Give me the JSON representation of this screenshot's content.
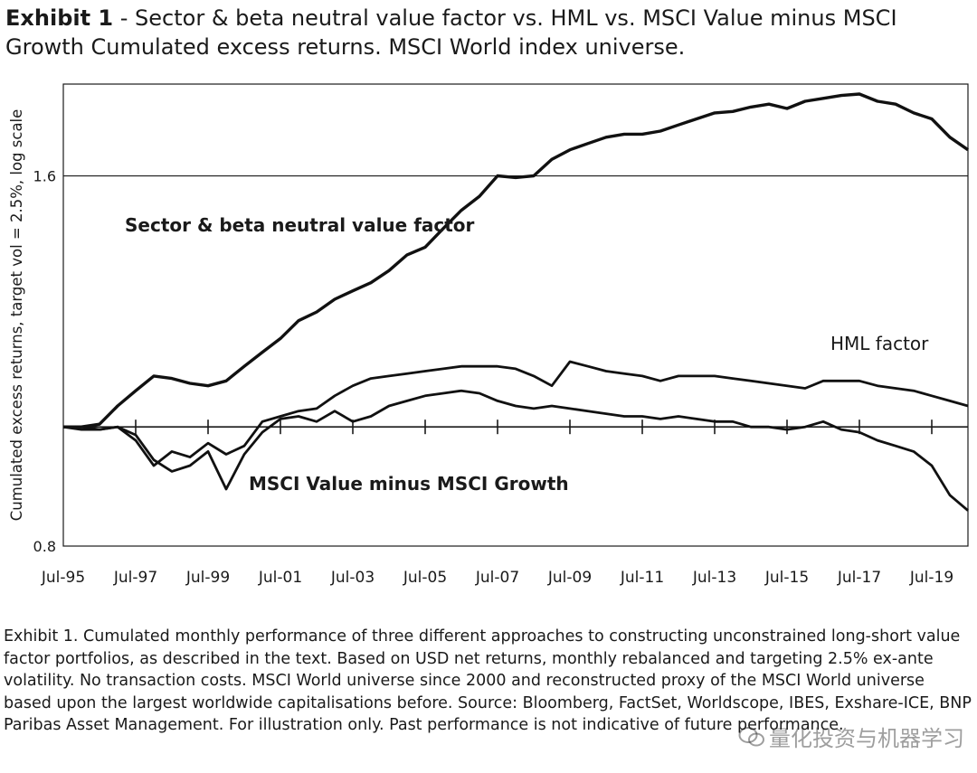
{
  "title": {
    "label": "Exhibit 1",
    "text": " - Sector & beta neutral value factor vs. HML vs. MSCI Value minus MSCI Growth Cumulated excess returns. MSCI World index universe."
  },
  "caption": "Exhibit 1. Cumulated monthly performance of three different approaches to constructing unconstrained long-short value factor portfolios, as described in the text. Based on USD net returns, monthly rebalanced and targeting 2.5% ex-ante volatility. No transaction costs. MSCI World universe since 2000 and reconstructed proxy of the MSCI World universe based upon the largest worldwide capitalisations before. Source: Bloomberg, FactSet, Worldscope, IBES, Exshare-ICE, BNP Paribas Asset Management. For illustration only. Past performance is not indicative of future performance.",
  "watermark": "量化投资与机器学习",
  "chart_data": {
    "type": "line",
    "title": "",
    "xlabel": "",
    "ylabel": "Cumulated excess returns, target vol = 2.5%, log scale",
    "y_scale": "log",
    "ylim": [
      0.8,
      1.9
    ],
    "xlim": [
      1995.5,
      2020.5
    ],
    "y_ticks": [
      "0.8",
      "1.6"
    ],
    "y_tick_values": [
      0.8,
      1.6
    ],
    "x_ticks": [
      "Jul-95",
      "Jul-97",
      "Jul-99",
      "Jul-01",
      "Jul-03",
      "Jul-05",
      "Jul-07",
      "Jul-09",
      "Jul-11",
      "Jul-13",
      "Jul-15",
      "Jul-17",
      "Jul-19"
    ],
    "x_tick_values": [
      1995.5,
      1997.5,
      1999.5,
      2001.5,
      2003.5,
      2005.5,
      2007.5,
      2009.5,
      2011.5,
      2013.5,
      2015.5,
      2017.5,
      2019.5
    ],
    "reference_lines": [
      1.0,
      1.6
    ],
    "grid": false,
    "series": [
      {
        "name": "Sector & beta neutral value factor",
        "x": [
          1995.5,
          1996.0,
          1996.5,
          1997.0,
          1997.5,
          1998.0,
          1998.5,
          1999.0,
          1999.5,
          2000.0,
          2000.5,
          2001.0,
          2001.5,
          2002.0,
          2002.5,
          2003.0,
          2003.5,
          2004.0,
          2004.5,
          2005.0,
          2005.5,
          2006.0,
          2006.5,
          2007.0,
          2007.5,
          2008.0,
          2008.5,
          2009.0,
          2009.5,
          2010.0,
          2010.5,
          2011.0,
          2011.5,
          2012.0,
          2012.5,
          2013.0,
          2013.5,
          2014.0,
          2014.5,
          2015.0,
          2015.5,
          2016.0,
          2016.5,
          2017.0,
          2017.5,
          2018.0,
          2018.5,
          2019.0,
          2019.5,
          2020.0,
          2020.5
        ],
        "y": [
          1.0,
          1.0,
          1.005,
          1.04,
          1.07,
          1.1,
          1.095,
          1.085,
          1.08,
          1.09,
          1.12,
          1.15,
          1.18,
          1.22,
          1.24,
          1.27,
          1.29,
          1.31,
          1.34,
          1.38,
          1.4,
          1.45,
          1.5,
          1.54,
          1.6,
          1.595,
          1.6,
          1.65,
          1.68,
          1.7,
          1.72,
          1.73,
          1.73,
          1.74,
          1.76,
          1.78,
          1.8,
          1.805,
          1.82,
          1.83,
          1.815,
          1.84,
          1.85,
          1.86,
          1.865,
          1.84,
          1.83,
          1.8,
          1.78,
          1.72,
          1.68
        ]
      },
      {
        "name": "HML factor",
        "x": [
          1995.5,
          1996.0,
          1996.5,
          1997.0,
          1997.5,
          1998.0,
          1998.5,
          1999.0,
          1999.5,
          2000.0,
          2000.5,
          2001.0,
          2001.5,
          2002.0,
          2002.5,
          2003.0,
          2003.5,
          2004.0,
          2004.5,
          2005.0,
          2005.5,
          2006.0,
          2006.5,
          2007.0,
          2007.5,
          2008.0,
          2008.5,
          2009.0,
          2009.5,
          2010.0,
          2010.5,
          2011.0,
          2011.5,
          2012.0,
          2012.5,
          2013.0,
          2013.5,
          2014.0,
          2014.5,
          2015.0,
          2015.5,
          2016.0,
          2016.5,
          2017.0,
          2017.5,
          2018.0,
          2018.5,
          2019.0,
          2019.5,
          2020.0,
          2020.5
        ],
        "y": [
          1.0,
          1.0,
          0.995,
          1.0,
          0.975,
          0.93,
          0.955,
          0.945,
          0.97,
          0.95,
          0.965,
          1.01,
          1.02,
          1.03,
          1.035,
          1.06,
          1.08,
          1.095,
          1.1,
          1.105,
          1.11,
          1.115,
          1.12,
          1.12,
          1.12,
          1.115,
          1.1,
          1.08,
          1.13,
          1.12,
          1.11,
          1.105,
          1.1,
          1.09,
          1.1,
          1.1,
          1.1,
          1.095,
          1.09,
          1.085,
          1.08,
          1.075,
          1.09,
          1.09,
          1.09,
          1.08,
          1.075,
          1.07,
          1.06,
          1.05,
          1.04
        ]
      },
      {
        "name": "MSCI Value minus MSCI Growth",
        "x": [
          1995.5,
          1996.0,
          1996.5,
          1997.0,
          1997.5,
          1998.0,
          1998.5,
          1999.0,
          1999.5,
          2000.0,
          2000.5,
          2001.0,
          2001.5,
          2002.0,
          2002.5,
          2003.0,
          2003.5,
          2004.0,
          2004.5,
          2005.0,
          2005.5,
          2006.0,
          2006.5,
          2007.0,
          2007.5,
          2008.0,
          2008.5,
          2009.0,
          2009.5,
          2010.0,
          2010.5,
          2011.0,
          2011.5,
          2012.0,
          2012.5,
          2013.0,
          2013.5,
          2014.0,
          2014.5,
          2015.0,
          2015.5,
          2016.0,
          2016.5,
          2017.0,
          2017.5,
          2018.0,
          2018.5,
          2019.0,
          2019.5,
          2020.0,
          2020.5
        ],
        "y": [
          1.0,
          0.995,
          0.995,
          1.0,
          0.985,
          0.94,
          0.92,
          0.93,
          0.955,
          0.89,
          0.95,
          0.99,
          1.015,
          1.02,
          1.01,
          1.03,
          1.01,
          1.02,
          1.04,
          1.05,
          1.06,
          1.065,
          1.07,
          1.065,
          1.05,
          1.04,
          1.035,
          1.04,
          1.035,
          1.03,
          1.025,
          1.02,
          1.02,
          1.015,
          1.02,
          1.015,
          1.01,
          1.01,
          1.0,
          1.0,
          0.995,
          1.0,
          1.01,
          0.995,
          0.99,
          0.975,
          0.965,
          0.955,
          0.93,
          0.88,
          0.855
        ]
      }
    ]
  }
}
